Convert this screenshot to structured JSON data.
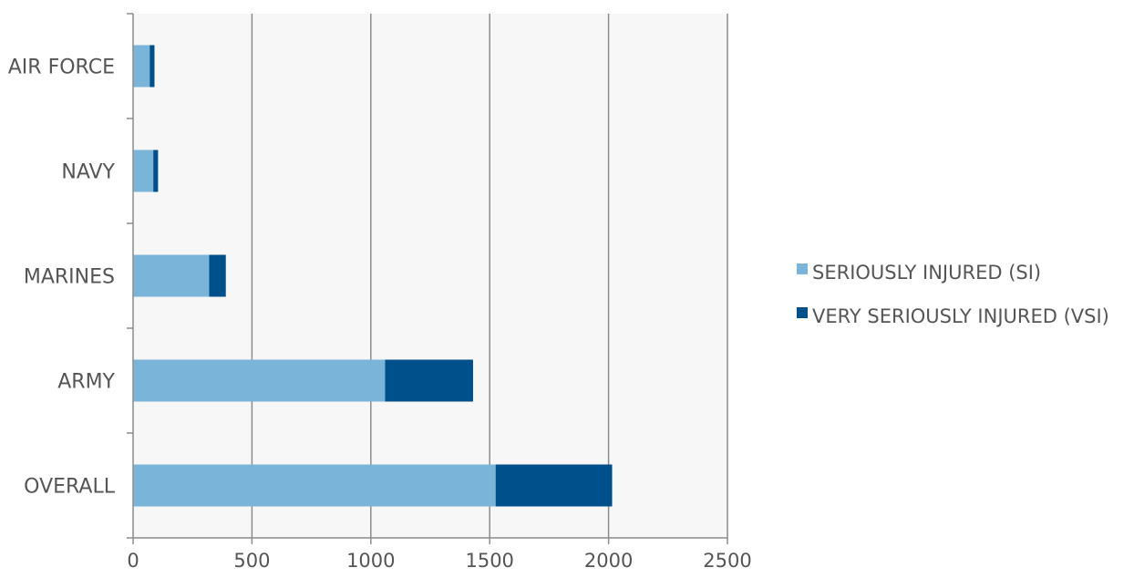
{
  "chart_data": {
    "type": "bar",
    "orientation": "horizontal",
    "stacked": true,
    "title": "",
    "xlabel": "",
    "ylabel": "",
    "categories": [
      "AIR FORCE",
      "NAVY",
      "MARINES",
      "ARMY",
      "OVERALL"
    ],
    "series": [
      {
        "name": "SERIOUSLY INJURED (SI)",
        "color": "#7ab4d9",
        "values": [
          70,
          85,
          320,
          1060,
          1525
        ]
      },
      {
        "name": "VERY SERIOUSLY INJURED (VSI)",
        "color": "#00508c",
        "values": [
          20,
          20,
          70,
          370,
          490
        ]
      }
    ],
    "x_ticks": [
      "0",
      "500",
      "1000",
      "1500",
      "2000",
      "2500"
    ],
    "xlim": [
      0,
      2500
    ],
    "gridlines": "vertical",
    "legend_position": "right"
  }
}
